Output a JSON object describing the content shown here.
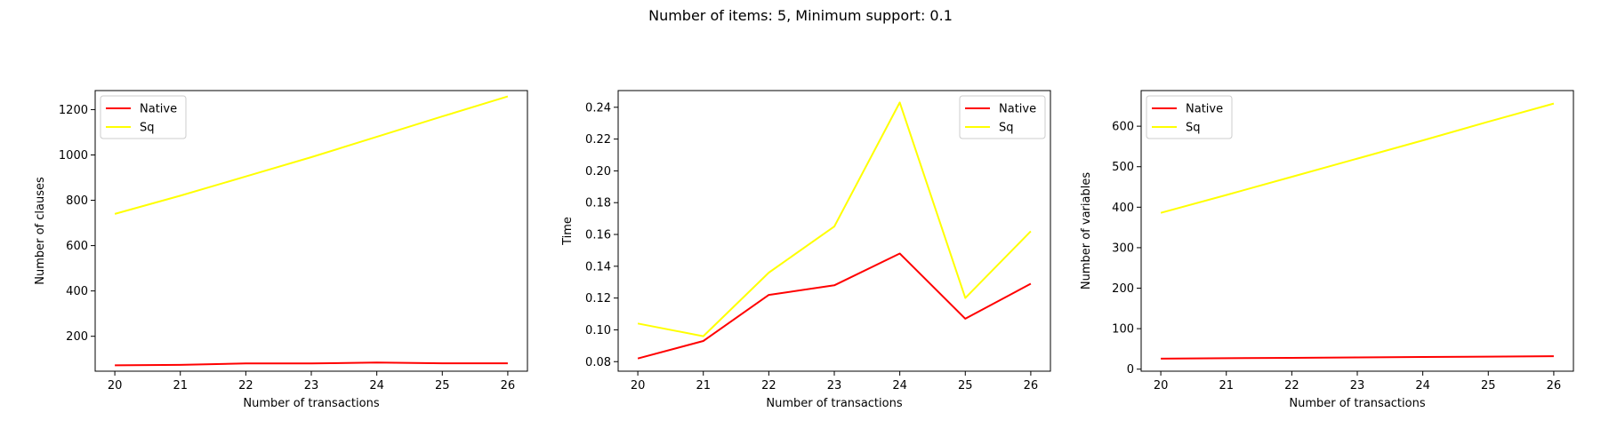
{
  "figure_title": "Number of items: 5, Minimum support: 0.1",
  "chart_data": [
    {
      "type": "line",
      "xlabel": "Number of transactions",
      "ylabel": "Number of clauses",
      "x": [
        20,
        21,
        22,
        23,
        24,
        25,
        26
      ],
      "xticks": [
        "20",
        "21",
        "22",
        "23",
        "24",
        "25",
        "26"
      ],
      "xlim": [
        19.7,
        26.3
      ],
      "ylim": [
        46,
        1284
      ],
      "yticks": [
        200,
        400,
        600,
        800,
        1000,
        1200
      ],
      "legend": "upper left",
      "series": [
        {
          "name": "Native",
          "color": "#ff0000",
          "values": [
            72,
            74,
            80,
            80,
            84,
            81,
            81
          ]
        },
        {
          "name": "Sq",
          "color": "#ffff00",
          "values": [
            740,
            820,
            905,
            990,
            1080,
            1170,
            1258
          ]
        }
      ]
    },
    {
      "type": "line",
      "xlabel": "Number of transactions",
      "ylabel": "Time",
      "x": [
        20,
        21,
        22,
        23,
        24,
        25,
        26
      ],
      "xticks": [
        "20",
        "21",
        "22",
        "23",
        "24",
        "25",
        "26"
      ],
      "xlim": [
        19.7,
        26.3
      ],
      "ylim": [
        0.074,
        0.2505
      ],
      "yticks": [
        0.08,
        0.1,
        0.12,
        0.14,
        0.16,
        0.18,
        0.2,
        0.22,
        0.24
      ],
      "legend": "upper right",
      "series": [
        {
          "name": "Native",
          "color": "#ff0000",
          "values": [
            0.082,
            0.093,
            0.122,
            0.128,
            0.148,
            0.107,
            0.129
          ]
        },
        {
          "name": "Sq",
          "color": "#ffff00",
          "values": [
            0.104,
            0.096,
            0.136,
            0.165,
            0.243,
            0.12,
            0.162
          ]
        }
      ]
    },
    {
      "type": "line",
      "xlabel": "Number of transactions",
      "ylabel": "Number of variables",
      "x": [
        20,
        21,
        22,
        23,
        24,
        25,
        26
      ],
      "xticks": [
        "20",
        "21",
        "22",
        "23",
        "24",
        "25",
        "26"
      ],
      "xlim": [
        19.7,
        26.3
      ],
      "ylim": [
        -5,
        688
      ],
      "yticks": [
        0,
        100,
        200,
        300,
        400,
        500,
        600
      ],
      "legend": "upper left",
      "series": [
        {
          "name": "Native",
          "color": "#ff0000",
          "values": [
            26,
            27,
            28,
            29,
            30,
            31,
            32
          ]
        },
        {
          "name": "Sq",
          "color": "#ffff00",
          "values": [
            386,
            430,
            475,
            520,
            565,
            611,
            656
          ]
        }
      ]
    }
  ]
}
